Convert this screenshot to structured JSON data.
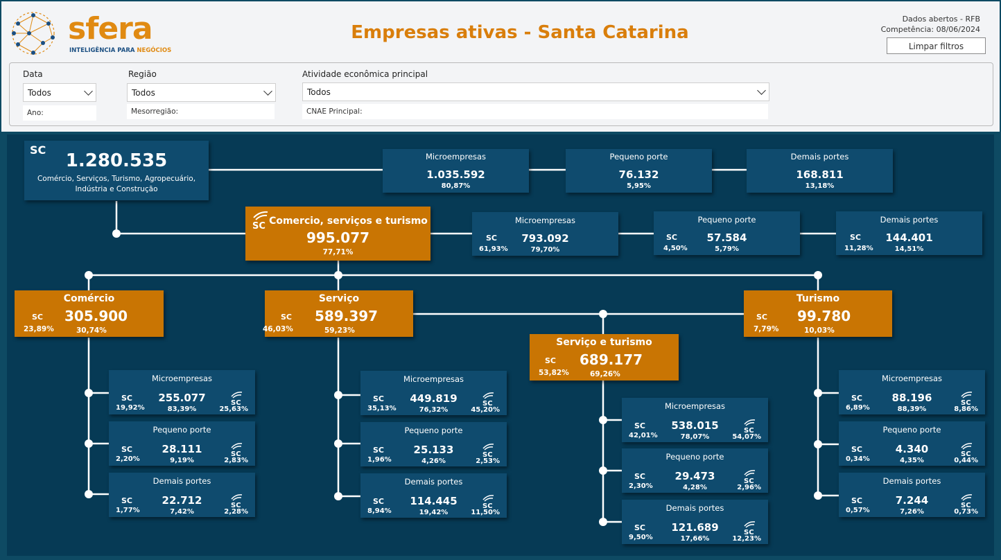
{
  "header": {
    "logo_word": "sfera",
    "logo_sub_a": "INTELIGÊNCIA PARA ",
    "logo_sub_b": "NEGÓCIOS",
    "title": "Empresas ativas - Santa Catarina",
    "meta_line1": "Dados abertos - RFB",
    "meta_line2": "Competência:  08/06/2024",
    "clear_button": "Limpar filtros"
  },
  "filters": {
    "data": {
      "label": "Data",
      "value": "Todos",
      "sub": "Ano:"
    },
    "regiao": {
      "label": "Região",
      "value": "Todos",
      "sub": "Mesorregião:"
    },
    "atividade": {
      "label": "Atividade econômica principal",
      "value": "Todos",
      "sub": "CNAE Principal:"
    }
  },
  "sc_label": "SC",
  "total": {
    "value": "1.280.535",
    "desc1": "Comércio, Serviços, Turismo, Agropecuário,",
    "desc2": "Indústria e Construção",
    "portes": [
      {
        "name": "Microempresas",
        "value": "1.035.592",
        "pct": "80,87%"
      },
      {
        "name": "Pequeno porte",
        "value": "76.132",
        "pct": "5,95%"
      },
      {
        "name": "Demais portes",
        "value": "168.811",
        "pct": "13,18%"
      }
    ]
  },
  "cst": {
    "title": "Comercio, serviços e turismo",
    "value": "995.077",
    "pct": "77,71%",
    "portes": [
      {
        "name": "Microempresas",
        "value": "793.092",
        "sc": "61,93%",
        "pct": "79,70%"
      },
      {
        "name": "Pequeno porte",
        "value": "57.584",
        "sc": "4,50%",
        "pct": "5,79%"
      },
      {
        "name": "Demais portes",
        "value": "144.401",
        "sc": "11,28%",
        "pct": "14,51%"
      }
    ]
  },
  "comercio": {
    "title": "Comércio",
    "value": "305.900",
    "sc": "23,89%",
    "pct": "30,74%",
    "portes": [
      {
        "name": "Microempresas",
        "value": "255.077",
        "sc": "19,92%",
        "pct": "83,39%",
        "sf": "25,63%"
      },
      {
        "name": "Pequeno porte",
        "value": "28.111",
        "sc": "2,20%",
        "pct": "9,19%",
        "sf": "2,83%"
      },
      {
        "name": "Demais portes",
        "value": "22.712",
        "sc": "1,77%",
        "pct": "7,42%",
        "sf": "2,28%"
      }
    ]
  },
  "servico": {
    "title": "Serviço",
    "value": "589.397",
    "sc": "46,03%",
    "pct": "59,23%",
    "portes": [
      {
        "name": "Microempresas",
        "value": "449.819",
        "sc": "35,13%",
        "pct": "76,32%",
        "sf": "45,20%"
      },
      {
        "name": "Pequeno porte",
        "value": "25.133",
        "sc": "1,96%",
        "pct": "4,26%",
        "sf": "2,53%"
      },
      {
        "name": "Demais portes",
        "value": "114.445",
        "sc": "8,94%",
        "pct": "19,42%",
        "sf": "11,50%"
      }
    ]
  },
  "servturismo": {
    "title": "Serviço e turismo",
    "value": "689.177",
    "sc": "53,82%",
    "pct": "69,26%",
    "portes": [
      {
        "name": "Microempresas",
        "value": "538.015",
        "sc": "42,01%",
        "pct": "78,07%",
        "sf": "54,07%"
      },
      {
        "name": "Pequeno porte",
        "value": "29.473",
        "sc": "2,30%",
        "pct": "4,28%",
        "sf": "2,96%"
      },
      {
        "name": "Demais portes",
        "value": "121.689",
        "sc": "9,50%",
        "pct": "17,66%",
        "sf": "12,23%"
      }
    ]
  },
  "turismo": {
    "title": "Turismo",
    "value": "99.780",
    "sc": "7,79%",
    "pct": "10,03%",
    "portes": [
      {
        "name": "Microempresas",
        "value": "88.196",
        "sc": "6,89%",
        "pct": "88,39%",
        "sf": "8,86%"
      },
      {
        "name": "Pequeno porte",
        "value": "4.340",
        "sc": "0,34%",
        "pct": "4,35%",
        "sf": "0,44%"
      },
      {
        "name": "Demais portes",
        "value": "7.244",
        "sc": "0,57%",
        "pct": "7,26%",
        "sf": "0,73%"
      }
    ]
  },
  "colors": {
    "orange": "#c97503",
    "navy": "#0f4b6e",
    "bg": "#063a55",
    "title": "#d97e0b"
  },
  "icons": {
    "sfera_mark": "sfera-sc-mark-icon",
    "dropdown": "chevron-down-icon"
  }
}
